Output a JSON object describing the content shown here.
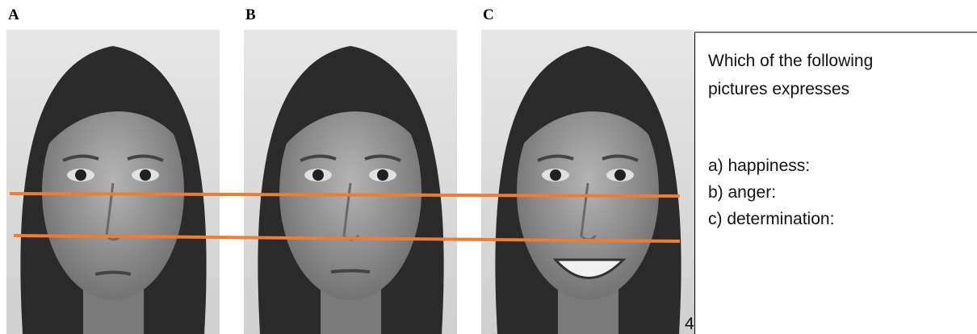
{
  "panels": [
    {
      "label": "A"
    },
    {
      "label": "B"
    },
    {
      "label": "C"
    }
  ],
  "question": {
    "lines": [
      "Which of the following",
      "pictures expresses"
    ],
    "options": [
      "a) happiness:",
      "b) anger:",
      "c) determination:"
    ]
  },
  "page_number": "4"
}
